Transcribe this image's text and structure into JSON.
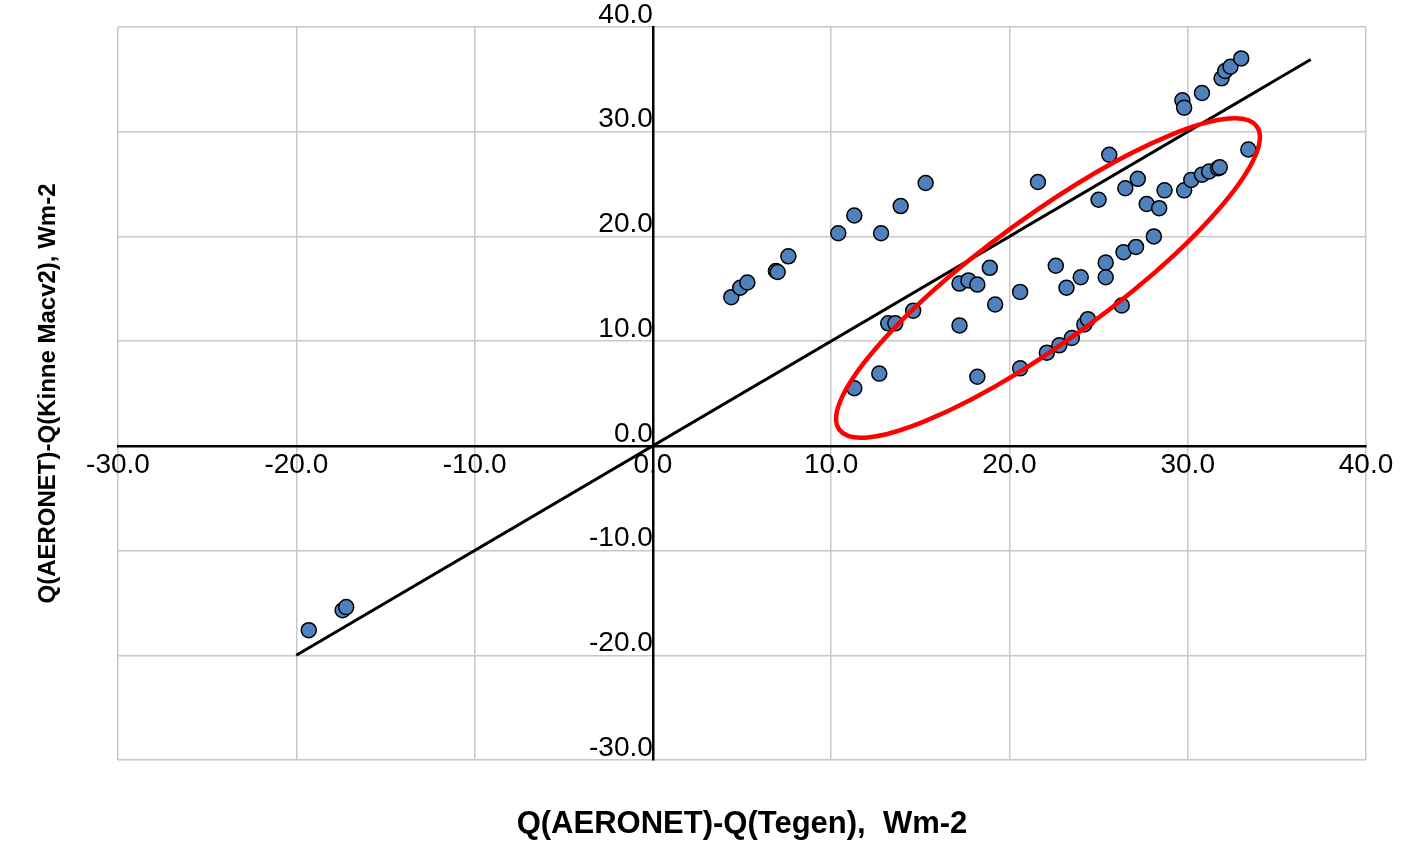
{
  "chart_data": {
    "type": "scatter",
    "xlabel": "Q(AERONET)-Q(Tegen),  Wm-2",
    "ylabel": "Q(AERONET)-Q(Kinne Macv2), Wm-2",
    "xlim": [
      -30,
      40
    ],
    "ylim": [
      -30,
      40
    ],
    "xticks": [
      {
        "value": -30,
        "label": "-30.0"
      },
      {
        "value": -20,
        "label": "-20.0"
      },
      {
        "value": -10,
        "label": "-10.0"
      },
      {
        "value": 0,
        "label": "0.0"
      },
      {
        "value": 10,
        "label": "10.0"
      },
      {
        "value": 20,
        "label": "20.0"
      },
      {
        "value": 30,
        "label": "30.0"
      },
      {
        "value": 40,
        "label": "40.0"
      }
    ],
    "yticks": [
      {
        "value": -30,
        "label": "-30.0"
      },
      {
        "value": -20,
        "label": "-20.0"
      },
      {
        "value": -10,
        "label": "-10.0"
      },
      {
        "value": 0,
        "label": "0.0"
      },
      {
        "value": 10,
        "label": "10.0"
      },
      {
        "value": 20,
        "label": "20.0"
      },
      {
        "value": 30,
        "label": "30.0"
      },
      {
        "value": 40,
        "label": "40.0"
      }
    ],
    "grid": true,
    "marker": "circle",
    "series": [
      {
        "type": "scatter",
        "color": "#4f81bd",
        "x": [
          4.4,
          4.9,
          5.3,
          6.9,
          7.0,
          7.6,
          10.4,
          11.3,
          12.8,
          13.9,
          15.3,
          21.6,
          25.6,
          29.7,
          29.8,
          30.8,
          31.9,
          32.1,
          32.4,
          33.0,
          33.4,
          11.3,
          12.7,
          13.2,
          13.6,
          14.6,
          17.2,
          17.2,
          17.7,
          18.2,
          18.2,
          18.9,
          19.2,
          20.6,
          20.6,
          22.1,
          22.6,
          22.8,
          23.2,
          23.5,
          24.0,
          24.2,
          24.4,
          25.0,
          25.4,
          25.4,
          26.3,
          26.4,
          26.5,
          27.1,
          27.2,
          27.7,
          28.1,
          28.4,
          28.7,
          29.8,
          30.2,
          30.8,
          31.2,
          31.7,
          31.8,
          -19.3,
          -17.4,
          -17.2
        ],
        "values": [
          14.2,
          15.1,
          15.6,
          16.7,
          16.6,
          18.1,
          20.3,
          22.0,
          20.3,
          22.9,
          25.1,
          25.2,
          27.8,
          33.0,
          32.3,
          33.7,
          35.1,
          35.8,
          36.2,
          37.0,
          28.3,
          5.5,
          6.9,
          11.7,
          11.7,
          12.9,
          11.5,
          15.5,
          15.8,
          15.4,
          6.6,
          17.0,
          13.5,
          14.7,
          7.4,
          8.9,
          17.2,
          9.6,
          15.1,
          10.3,
          16.1,
          11.6,
          12.1,
          23.5,
          17.5,
          16.1,
          13.4,
          18.5,
          24.6,
          19.0,
          25.5,
          23.1,
          20.0,
          22.7,
          24.4,
          24.4,
          25.4,
          25.9,
          26.2,
          26.5,
          26.6,
          -17.6,
          -15.7,
          -15.4
        ]
      },
      {
        "type": "line",
        "color": "#000000",
        "marker": "none",
        "x": [
          -20,
          36.9
        ],
        "values": [
          -20,
          36.9
        ]
      }
    ]
  }
}
